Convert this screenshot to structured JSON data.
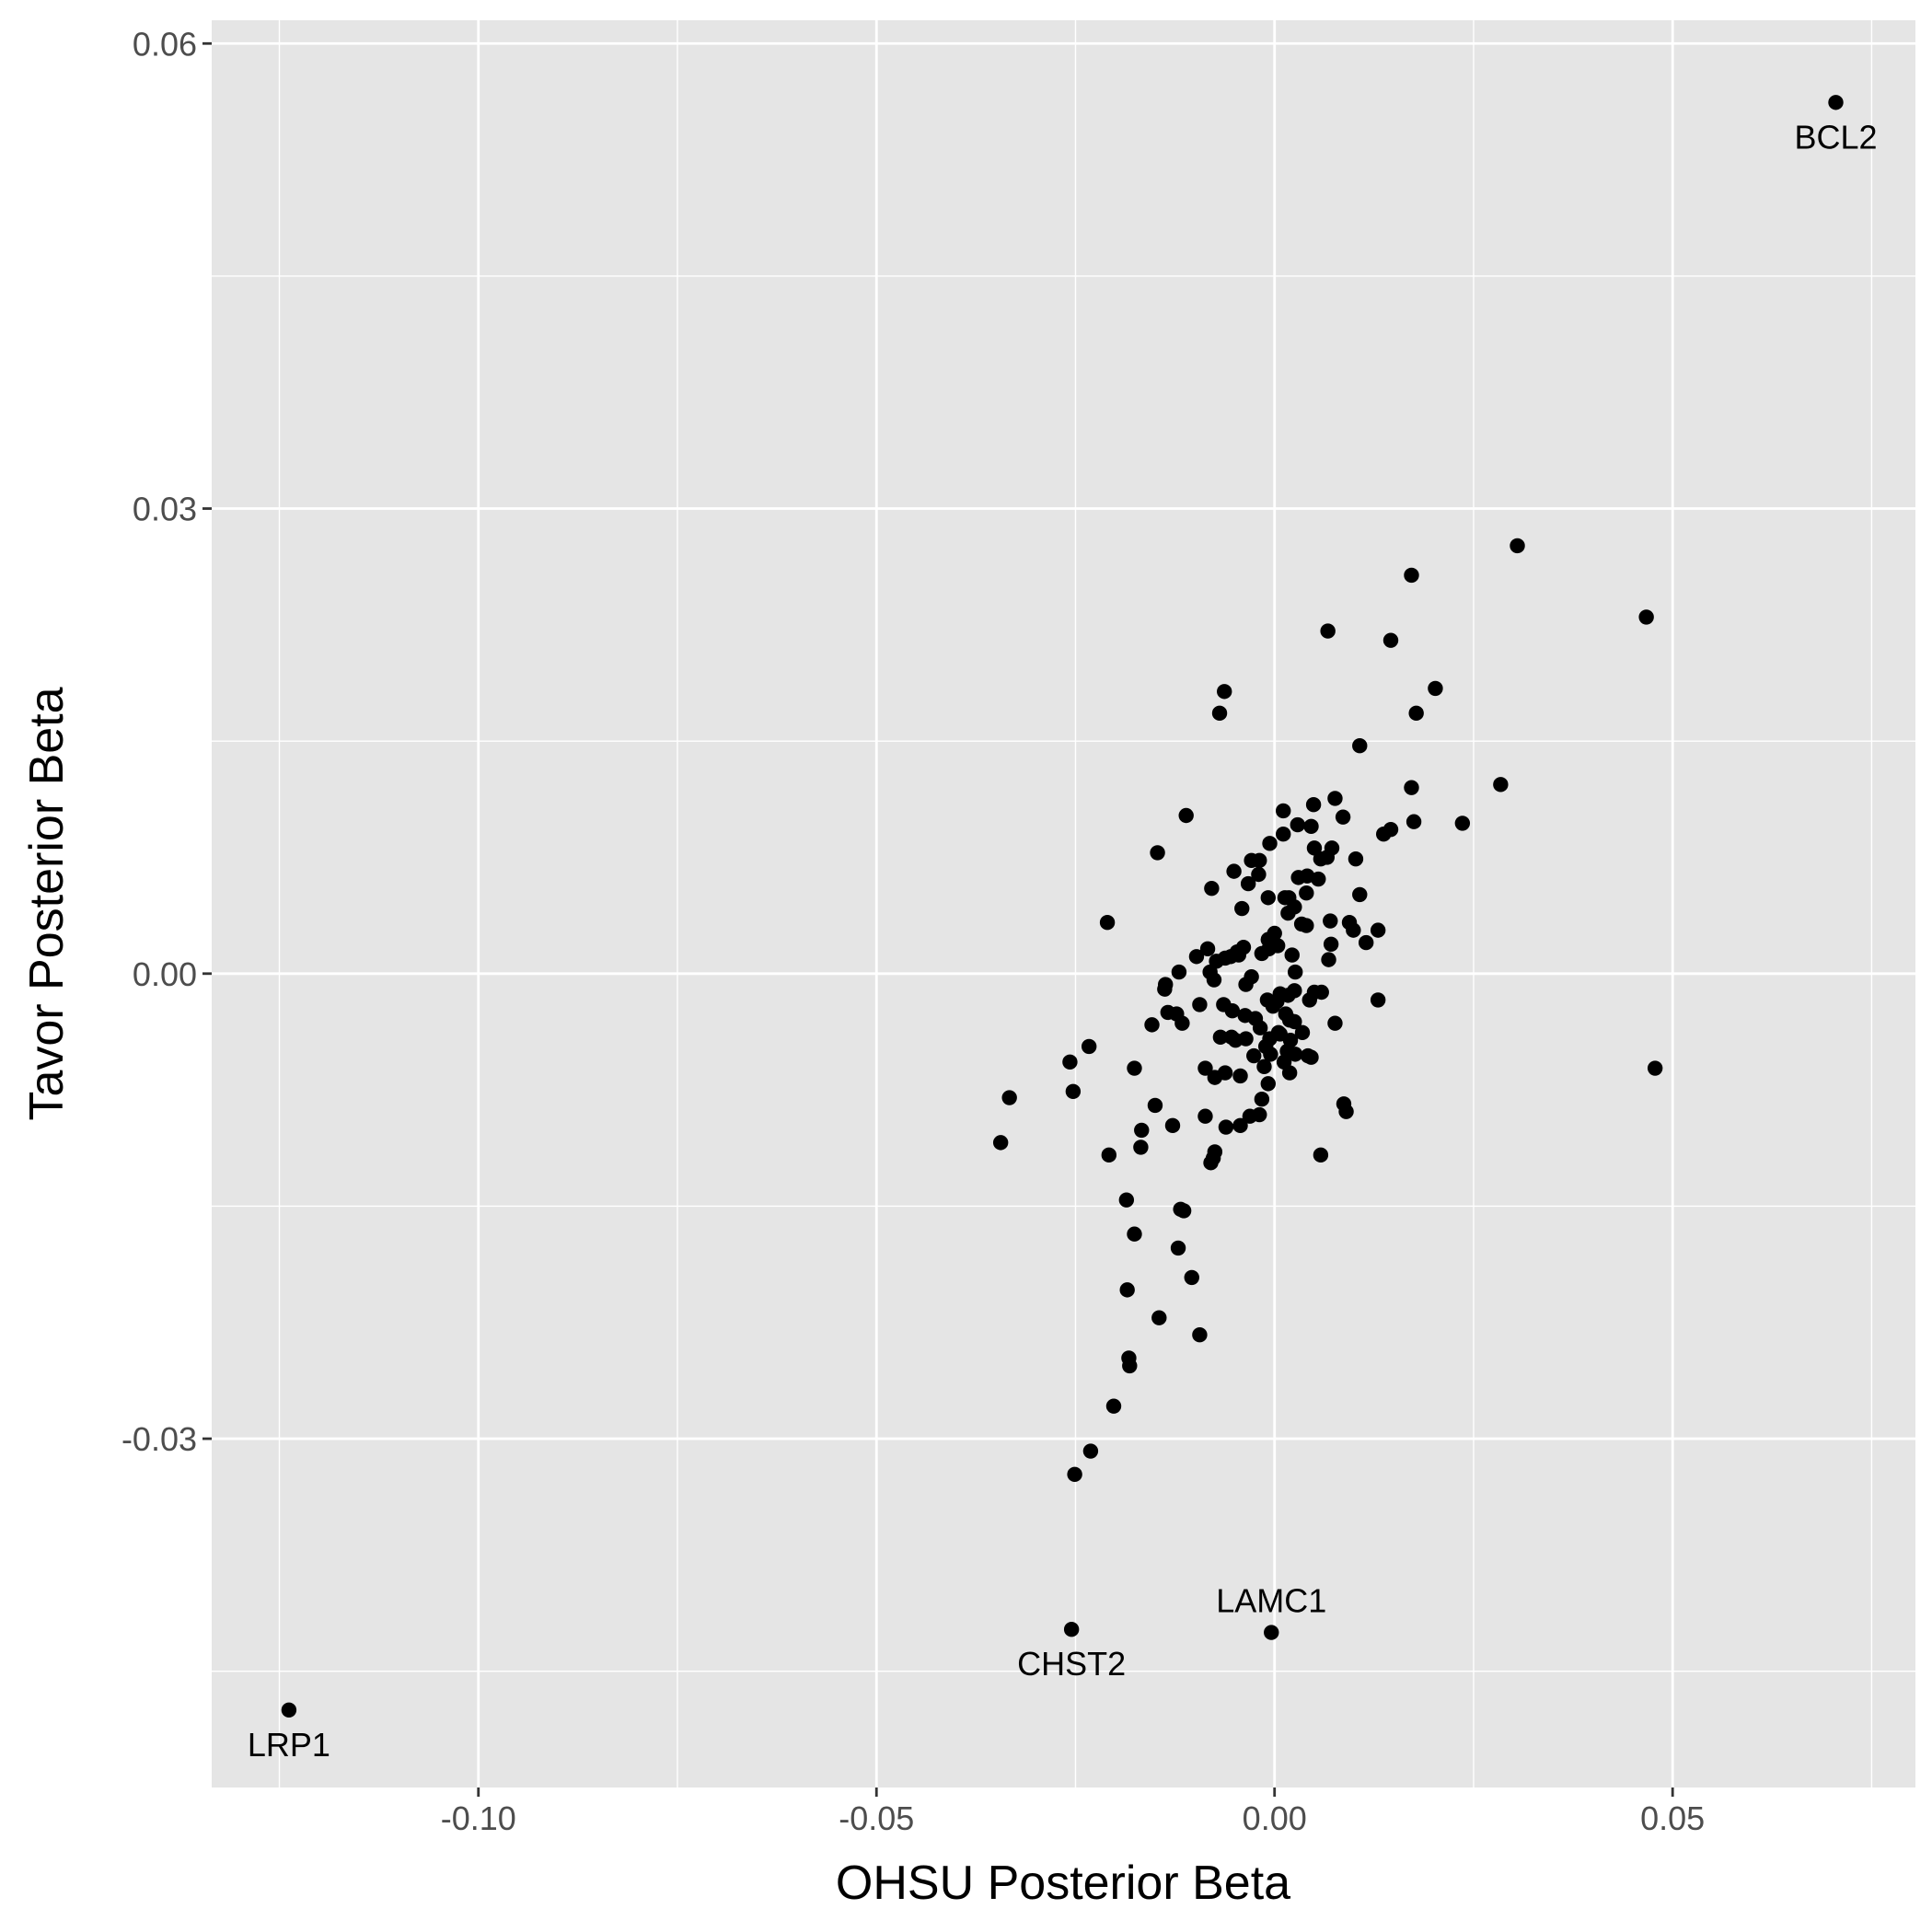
{
  "chart_data": {
    "type": "scatter",
    "title": "",
    "xlabel": "OHSU Posterior Beta",
    "ylabel": "Tavor Posterior Beta",
    "xlim": [
      -0.1335,
      0.0805
    ],
    "ylim": [
      -0.0525,
      0.0615
    ],
    "x_major_ticks": [
      -0.1,
      -0.05,
      0.0,
      0.05
    ],
    "x_tick_labels": [
      "-0.10",
      "-0.05",
      "0.00",
      "0.05"
    ],
    "x_minor_ticks": [
      -0.125,
      -0.075,
      -0.025,
      0.025,
      0.075
    ],
    "y_major_ticks": [
      -0.03,
      0.0,
      0.03,
      0.06
    ],
    "y_tick_labels": [
      "-0.03",
      "0.00",
      "0.03",
      "0.06"
    ],
    "y_minor_ticks": [
      -0.045,
      -0.015,
      0.015,
      0.045
    ],
    "grid": true,
    "colors": {
      "panel": "#e5e5e5",
      "grid": "#ffffff",
      "point": "#000000",
      "tick_label": "#4d4d4d"
    },
    "labeled_points": [
      {
        "label": "BCL2",
        "x": 0.0705,
        "y": 0.0562,
        "label_pos": "below"
      },
      {
        "label": "LAMC1",
        "x": -0.0004,
        "y": -0.0425,
        "label_pos": "above"
      },
      {
        "label": "CHST2",
        "x": -0.0255,
        "y": -0.0423,
        "label_pos": "below"
      },
      {
        "label": "LRP1",
        "x": -0.1238,
        "y": -0.0475,
        "label_pos": "below"
      }
    ],
    "points": [
      [
        0.0305,
        0.0276
      ],
      [
        0.0172,
        0.0257
      ],
      [
        0.0467,
        0.023
      ],
      [
        0.0067,
        0.0221
      ],
      [
        0.0146,
        0.0215
      ],
      [
        0.0202,
        0.0184
      ],
      [
        0.0178,
        0.0168
      ],
      [
        0.0107,
        0.0147
      ],
      [
        -0.0063,
        0.0182
      ],
      [
        -0.0069,
        0.0168
      ],
      [
        0.0284,
        0.0122
      ],
      [
        0.0172,
        0.012
      ],
      [
        0.0236,
        0.0097
      ],
      [
        0.0175,
        0.0098
      ],
      [
        0.0146,
        0.0093
      ],
      [
        0.0137,
        0.009
      ],
      [
        -0.0111,
        0.0102
      ],
      [
        -0.0147,
        0.0078
      ],
      [
        -0.021,
        0.0033
      ],
      [
        0.0076,
        0.0113
      ],
      [
        0.0049,
        0.0109
      ],
      [
        0.0011,
        0.0105
      ],
      [
        0.0086,
        0.0101
      ],
      [
        0.0029,
        0.0096
      ],
      [
        0.0046,
        0.0095
      ],
      [
        0.0011,
        0.009
      ],
      [
        -0.0006,
        0.0084
      ],
      [
        0.005,
        0.0081
      ],
      [
        0.0072,
        0.0081
      ],
      [
        0.0058,
        0.0074
      ],
      [
        0.0066,
        0.0075
      ],
      [
        0.0102,
        0.0074
      ],
      [
        -0.0029,
        0.0073
      ],
      [
        -0.0019,
        0.0073
      ],
      [
        -0.0051,
        0.0066
      ],
      [
        -0.002,
        0.0064
      ],
      [
        0.003,
        0.0062
      ],
      [
        0.0041,
        0.0063
      ],
      [
        0.0055,
        0.0061
      ],
      [
        -0.0033,
        0.0058
      ],
      [
        -0.0079,
        0.0055
      ],
      [
        0.004,
        0.0052
      ],
      [
        0.0107,
        0.0051
      ],
      [
        -0.0008,
        0.0049
      ],
      [
        0.0013,
        0.0049
      ],
      [
        0.0018,
        0.0049
      ],
      [
        0.0025,
        0.0043
      ],
      [
        0.0017,
        0.0039
      ],
      [
        -0.0041,
        0.0042
      ],
      [
        0.007,
        0.0034
      ],
      [
        0.0094,
        0.0033
      ],
      [
        0.0034,
        0.0032
      ],
      [
        0.004,
        0.0031
      ],
      [
        0.013,
        0.0028
      ],
      [
        0.0099,
        0.0028
      ],
      [
        -0.0008,
        0.0022
      ],
      [
        0.0,
        0.0026
      ],
      [
        0.0115,
        0.002
      ],
      [
        0.0071,
        0.0019
      ],
      [
        -0.0039,
        0.0017
      ],
      [
        -0.0007,
        0.0016
      ],
      [
        0.0004,
        0.0018
      ],
      [
        -0.0084,
        0.0016
      ],
      [
        -0.0047,
        0.0014
      ],
      [
        -0.0098,
        0.0011
      ],
      [
        -0.0062,
        0.001
      ],
      [
        -0.0055,
        0.0011
      ],
      [
        -0.0045,
        0.0012
      ],
      [
        -0.0073,
        0.0008
      ],
      [
        -0.0016,
        0.0013
      ],
      [
        0.0068,
        0.0009
      ],
      [
        0.0022,
        0.0012
      ],
      [
        -0.012,
        0.0001
      ],
      [
        -0.0081,
        0.0001
      ],
      [
        -0.0029,
        -0.0002
      ],
      [
        0.0026,
        0.0001
      ],
      [
        -0.0076,
        -0.0004
      ],
      [
        -0.0036,
        -0.0007
      ],
      [
        -0.0137,
        -0.0007
      ],
      [
        -0.0138,
        -0.001
      ],
      [
        0.0025,
        -0.0011
      ],
      [
        0.005,
        -0.0012
      ],
      [
        0.0007,
        -0.0013
      ],
      [
        0.0017,
        -0.0014
      ],
      [
        0.0059,
        -0.0012
      ],
      [
        -0.0009,
        -0.0017
      ],
      [
        0.0003,
        -0.0018
      ],
      [
        -0.0002,
        -0.0021
      ],
      [
        0.0044,
        -0.0017
      ],
      [
        0.013,
        -0.0017
      ],
      [
        -0.0064,
        -0.002
      ],
      [
        -0.0094,
        -0.002
      ],
      [
        -0.0053,
        -0.0024
      ],
      [
        -0.0134,
        -0.0025
      ],
      [
        -0.0123,
        -0.0026
      ],
      [
        0.0014,
        -0.0026
      ],
      [
        -0.0037,
        -0.0027
      ],
      [
        -0.0024,
        -0.0029
      ],
      [
        0.0019,
        -0.003
      ],
      [
        0.0025,
        -0.0031
      ],
      [
        -0.0154,
        -0.0033
      ],
      [
        -0.0116,
        -0.0032
      ],
      [
        0.0076,
        -0.0032
      ],
      [
        -0.0018,
        -0.0035
      ],
      [
        0.0005,
        -0.0038
      ],
      [
        0.0007,
        -0.0039
      ],
      [
        0.0035,
        -0.0038
      ],
      [
        -0.0006,
        -0.0042
      ],
      [
        0.002,
        -0.0043
      ],
      [
        -0.0068,
        -0.0041
      ],
      [
        -0.0054,
        -0.0041
      ],
      [
        -0.0036,
        -0.0042
      ],
      [
        -0.0049,
        -0.0043
      ],
      [
        -0.0011,
        -0.0047
      ],
      [
        -0.0005,
        -0.0052
      ],
      [
        0.0016,
        -0.005
      ],
      [
        0.0026,
        -0.0052
      ],
      [
        -0.0026,
        -0.0053
      ],
      [
        0.0042,
        -0.0053
      ],
      [
        0.0046,
        -0.0054
      ],
      [
        -0.0013,
        -0.006
      ],
      [
        0.0012,
        -0.0057
      ],
      [
        -0.0087,
        -0.0061
      ],
      [
        -0.0062,
        -0.0064
      ],
      [
        -0.0075,
        -0.0067
      ],
      [
        -0.0043,
        -0.0066
      ],
      [
        0.0019,
        -0.0064
      ],
      [
        -0.0008,
        -0.0071
      ],
      [
        -0.0176,
        -0.0061
      ],
      [
        -0.0257,
        -0.0057
      ],
      [
        -0.0233,
        -0.0047
      ],
      [
        0.0478,
        -0.0061
      ],
      [
        -0.0333,
        -0.008
      ],
      [
        -0.0253,
        -0.0076
      ],
      [
        -0.015,
        -0.0085
      ],
      [
        -0.0016,
        -0.0081
      ],
      [
        -0.0087,
        -0.0092
      ],
      [
        -0.0128,
        -0.0098
      ],
      [
        -0.0061,
        -0.0099
      ],
      [
        -0.0019,
        -0.0091
      ],
      [
        -0.0031,
        -0.0092
      ],
      [
        0.0087,
        -0.0084
      ],
      [
        0.009,
        -0.0089
      ],
      [
        -0.0043,
        -0.0098
      ],
      [
        -0.0344,
        -0.0109
      ],
      [
        -0.0167,
        -0.0101
      ],
      [
        -0.0168,
        -0.0112
      ],
      [
        -0.0075,
        -0.0115
      ],
      [
        -0.0077,
        -0.0119
      ],
      [
        -0.008,
        -0.0122
      ],
      [
        -0.0208,
        -0.0117
      ],
      [
        0.0058,
        -0.0117
      ],
      [
        -0.0186,
        -0.0146
      ],
      [
        -0.0118,
        -0.0152
      ],
      [
        -0.0114,
        -0.0153
      ],
      [
        -0.0176,
        -0.0168
      ],
      [
        -0.0121,
        -0.0177
      ],
      [
        -0.0104,
        -0.0196
      ],
      [
        -0.0185,
        -0.0204
      ],
      [
        -0.0145,
        -0.0222
      ],
      [
        -0.0094,
        -0.0233
      ],
      [
        -0.0183,
        -0.0248
      ],
      [
        -0.0182,
        -0.0253
      ],
      [
        -0.0202,
        -0.0279
      ],
      [
        -0.0231,
        -0.0308
      ],
      [
        -0.0251,
        -0.0323
      ]
    ]
  }
}
